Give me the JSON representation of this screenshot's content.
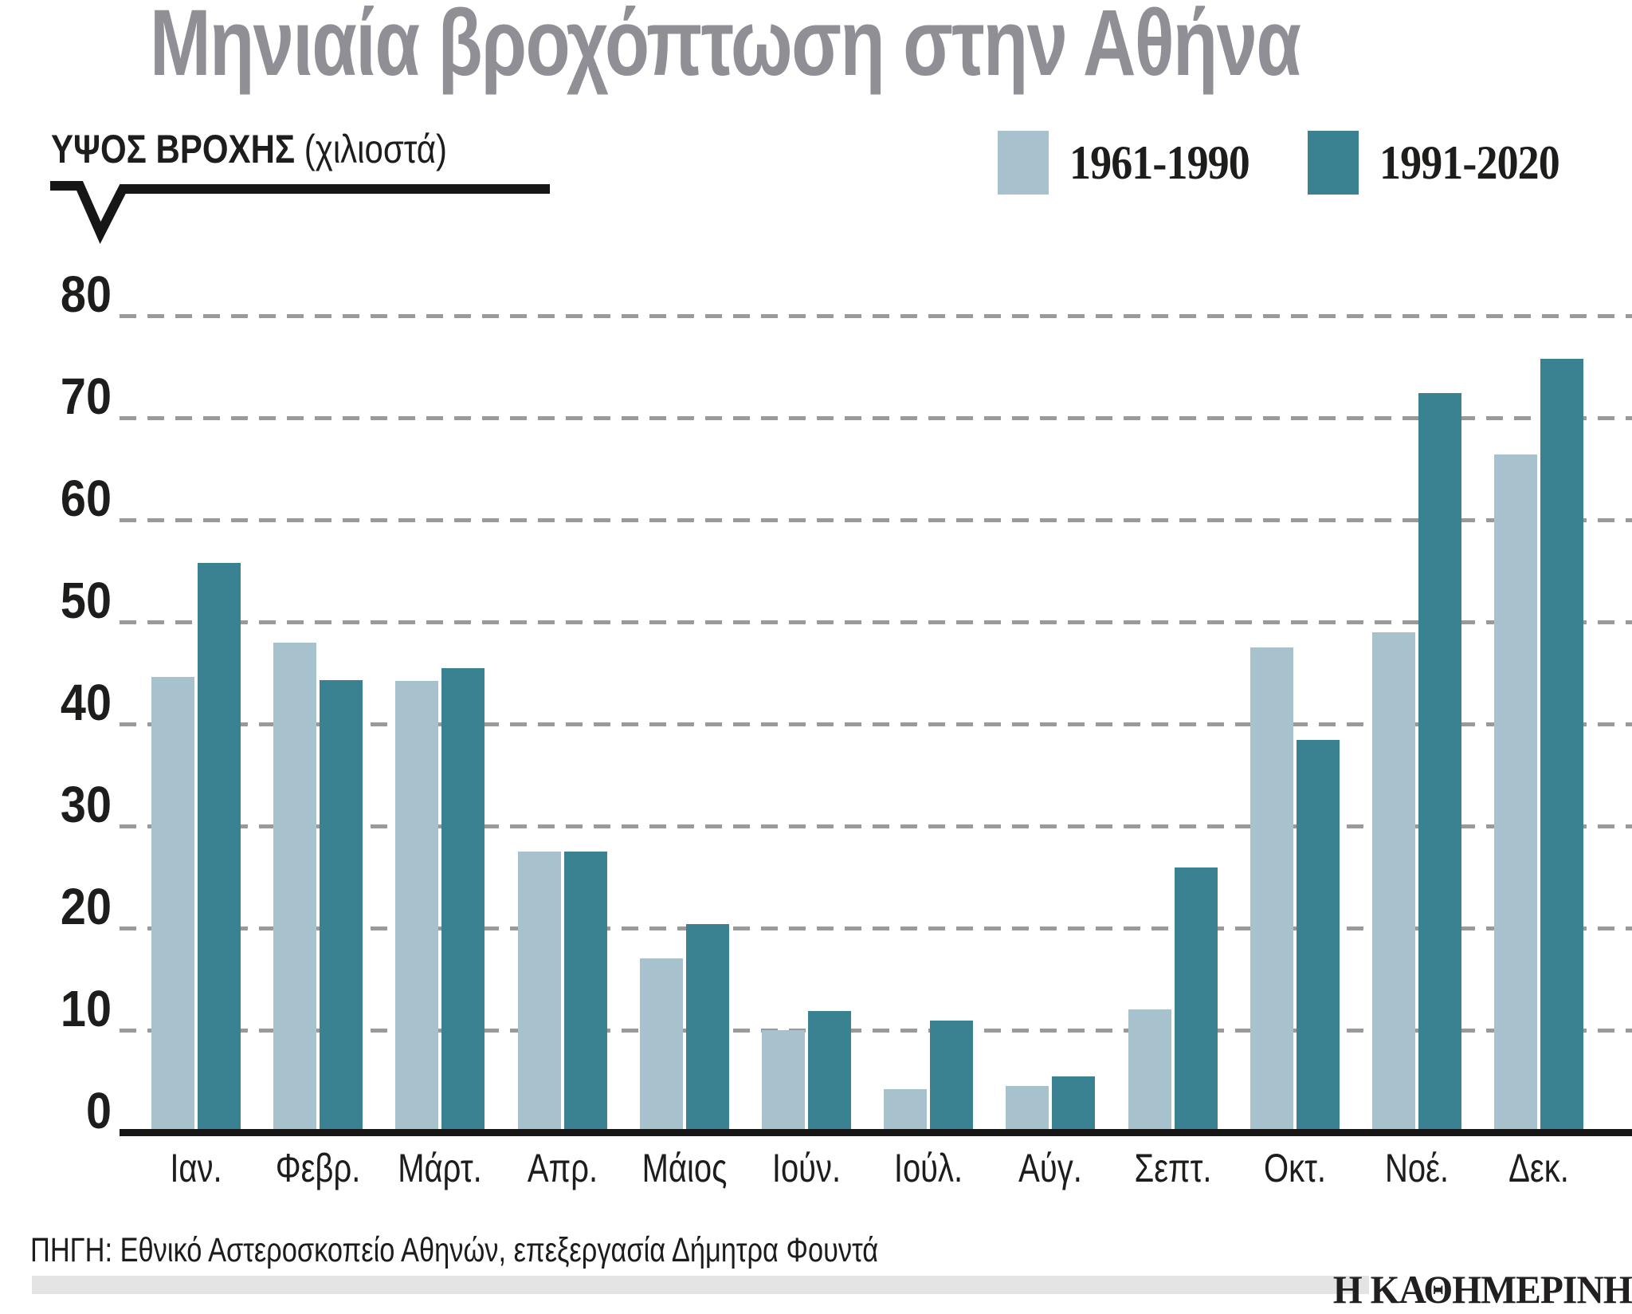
{
  "title": "Μηνιαία βροχόπτωση στην Αθήνα",
  "y_axis": {
    "label_bold": "ΥΨΟΣ ΒΡΟΧΗΣ",
    "label_unit": "(χιλιοστά)"
  },
  "legend": [
    {
      "label": "1961-1990",
      "color": "#a7c2cd"
    },
    {
      "label": "1991-2020",
      "color": "#3a8191"
    }
  ],
  "footer": {
    "source": "ΠΗΓΗ: Εθνικό Αστεροσκοπείο Αθηνών, επεξεργασία Δήμητρα Φουντά",
    "logo": "Η ΚΑΘΗΜΕΡΙΝΗ"
  },
  "colors": {
    "title_gray": "#8f8f95",
    "gridline": "#9a9a9a",
    "baseline": "#161616",
    "footer_strip": "#e4e4e4"
  },
  "chart_data": {
    "type": "bar",
    "title": "Μηνιαία βροχόπτωση στην Αθήνα",
    "ylabel": "ΥΨΟΣ ΒΡΟΧΗΣ (χιλιοστά)",
    "xlabel": "",
    "ylim": [
      0,
      80
    ],
    "yticks": [
      0,
      10,
      20,
      30,
      40,
      50,
      60,
      70,
      80
    ],
    "grid": "horizontal-dashed",
    "legend_position": "top-right",
    "categories": [
      "Ιαν.",
      "Φεβρ.",
      "Μάρτ.",
      "Απρ.",
      "Μάιος",
      "Ιούν.",
      "Ιούλ.",
      "Αύγ.",
      "Σεπτ.",
      "Οκτ.",
      "Νοέ.",
      "Δεκ."
    ],
    "series": [
      {
        "name": "1961-1990",
        "color": "#a7c2cd",
        "values": [
          44.6,
          48.0,
          44.2,
          27.5,
          17.0,
          10.0,
          4.2,
          4.5,
          12.0,
          47.5,
          49.0,
          66.4
        ]
      },
      {
        "name": "1991-2020",
        "color": "#3a8191",
        "values": [
          55.8,
          44.3,
          45.5,
          27.5,
          20.4,
          11.9,
          10.9,
          5.5,
          25.9,
          38.4,
          72.4,
          75.8
        ]
      }
    ]
  }
}
